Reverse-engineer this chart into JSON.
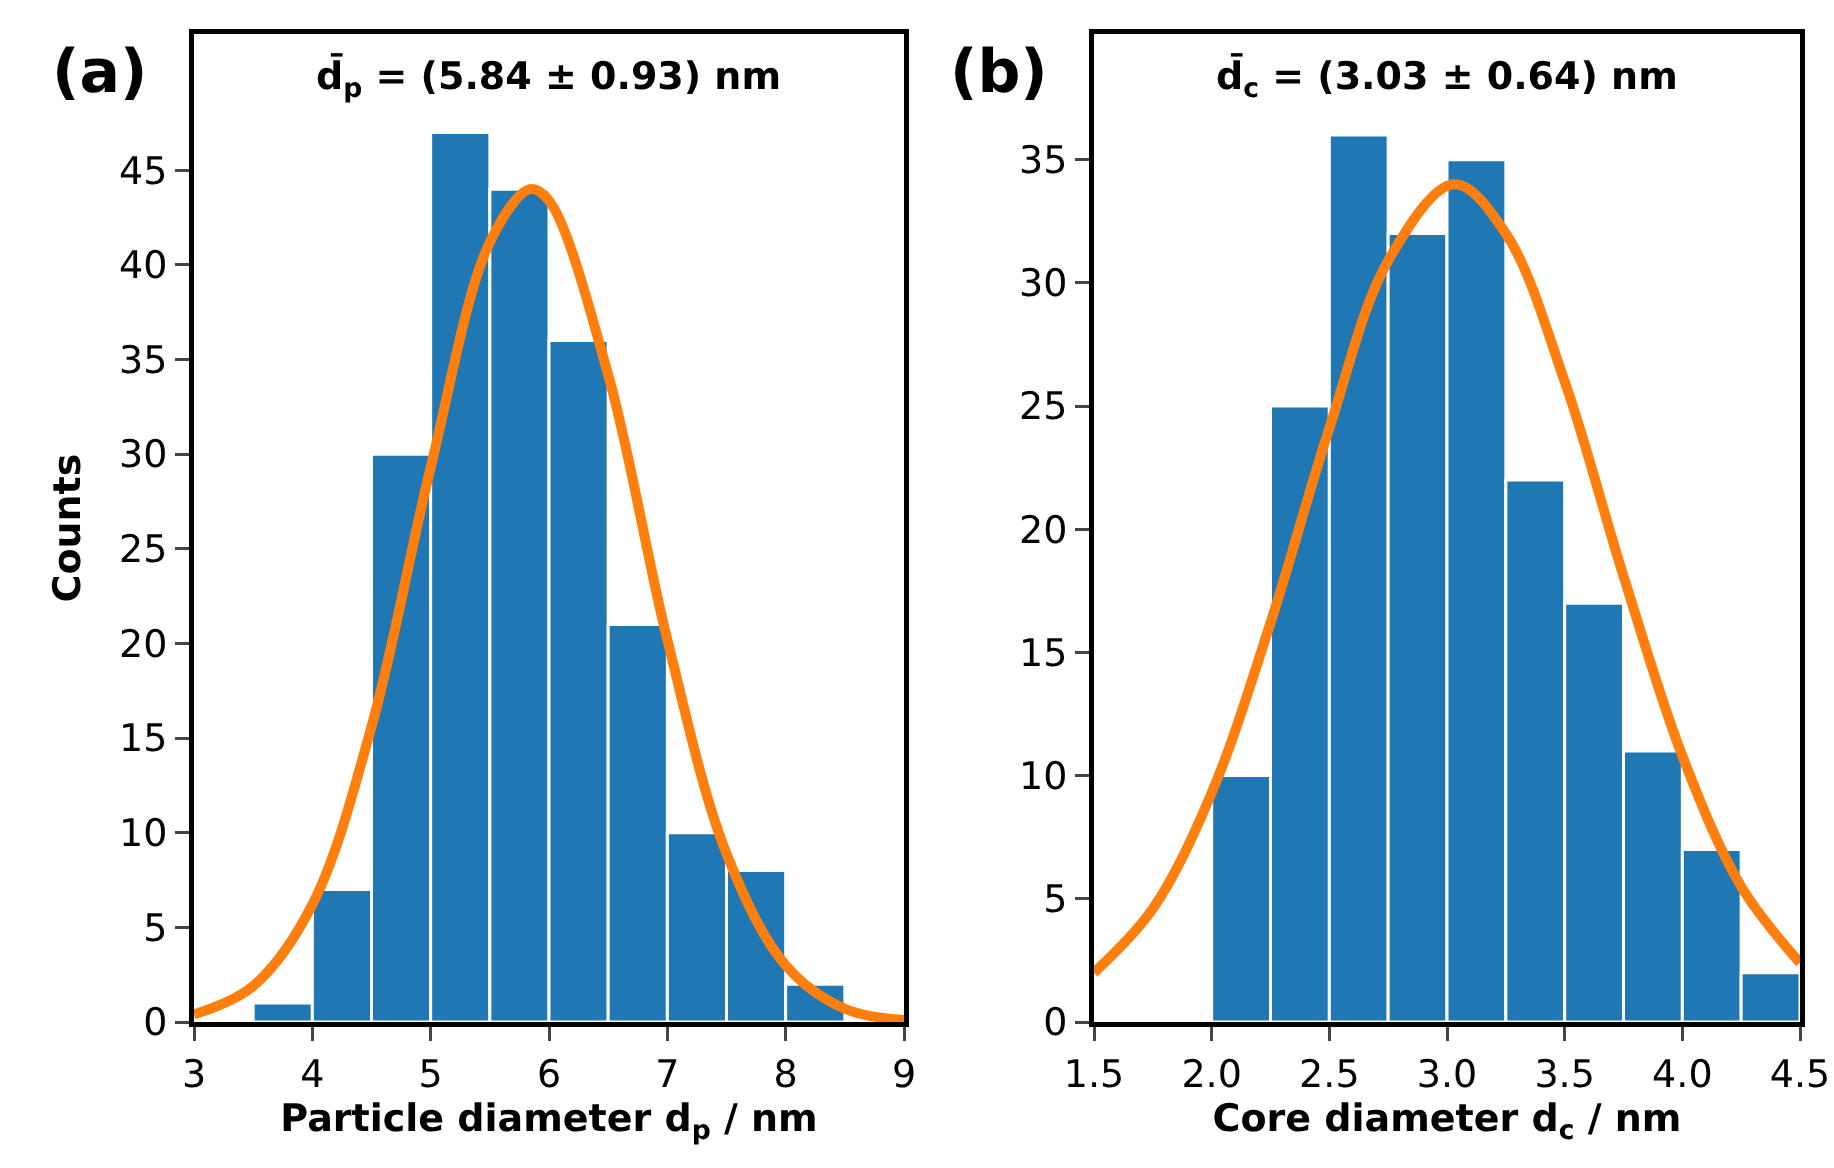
{
  "chart_data": [
    {
      "type": "histogram",
      "title": "d̄$_{p}$ = (5.84 ± 0.93) nm",
      "xlabel": "Particle diameter d$_{p}$ / nm",
      "ylabel": "Counts",
      "annotations": [
        "(a)"
      ],
      "bins": [
        3.5,
        4,
        4.5,
        5,
        5.5,
        6,
        6.5,
        7,
        7.5,
        8,
        8.5
      ],
      "values": [
        1,
        7,
        30,
        47,
        44,
        36,
        21,
        10,
        8,
        2
      ],
      "color": "#1f77b4",
      "series": [
        {
          "type": "line",
          "color": "#ff7f0e",
          "x": [
            3,
            3.5,
            4,
            4.5,
            5,
            5.5,
            5.84,
            6,
            6.5,
            7,
            7.5,
            8,
            8.5,
            9
          ],
          "values": [
            0.4,
            1.9,
            6.2,
            15.6,
            29.3,
            41.2,
            44,
            43.4,
            34.2,
            20.2,
            8.9,
            3.0,
            0.7,
            0.1
          ]
        }
      ],
      "xlim": [
        3,
        9
      ],
      "xticks": [
        3,
        4,
        5,
        6,
        7,
        8,
        9
      ],
      "ylim": [
        0,
        52.2
      ],
      "yticks": [
        0,
        5,
        10,
        15,
        20,
        25,
        30,
        35,
        40,
        45
      ],
      "grid": false
    },
    {
      "type": "histogram",
      "title": "d̄$_{c}$ = (3.03 ± 0.64) nm",
      "xlabel": "Core diameter d$_{c}$ / nm",
      "annotations": [
        "(b)"
      ],
      "bins": [
        2,
        2.25,
        2.5,
        2.75,
        3,
        3.25,
        3.5,
        3.75,
        4,
        4.25,
        4.5
      ],
      "values": [
        10,
        25,
        36,
        32,
        35,
        22,
        17,
        11,
        7,
        2
      ],
      "color": "#1f77b4",
      "series": [
        {
          "type": "line",
          "color": "#ff7f0e",
          "x": [
            1.5,
            1.75,
            2,
            2.25,
            2.5,
            2.75,
            3.03,
            3.25,
            3.5,
            3.75,
            4,
            4.25,
            4.5
          ],
          "values": [
            2.0,
            4.6,
            9.3,
            16.2,
            24.1,
            30.9,
            34,
            32.0,
            26.0,
            18.1,
            10.8,
            5.5,
            2.4
          ]
        }
      ],
      "xlim": [
        1.5,
        4.5
      ],
      "xticks": [
        1.5,
        {
          "value": 2,
          "label": "2.0"
        },
        2.5,
        {
          "value": 3,
          "label": "3.0"
        },
        3.5,
        {
          "value": 4,
          "label": "4.0"
        },
        4.5
      ],
      "ylim": [
        0,
        40.1
      ],
      "yticks": [
        0,
        5,
        10,
        15,
        20,
        25,
        30,
        35
      ],
      "grid": false
    }
  ]
}
